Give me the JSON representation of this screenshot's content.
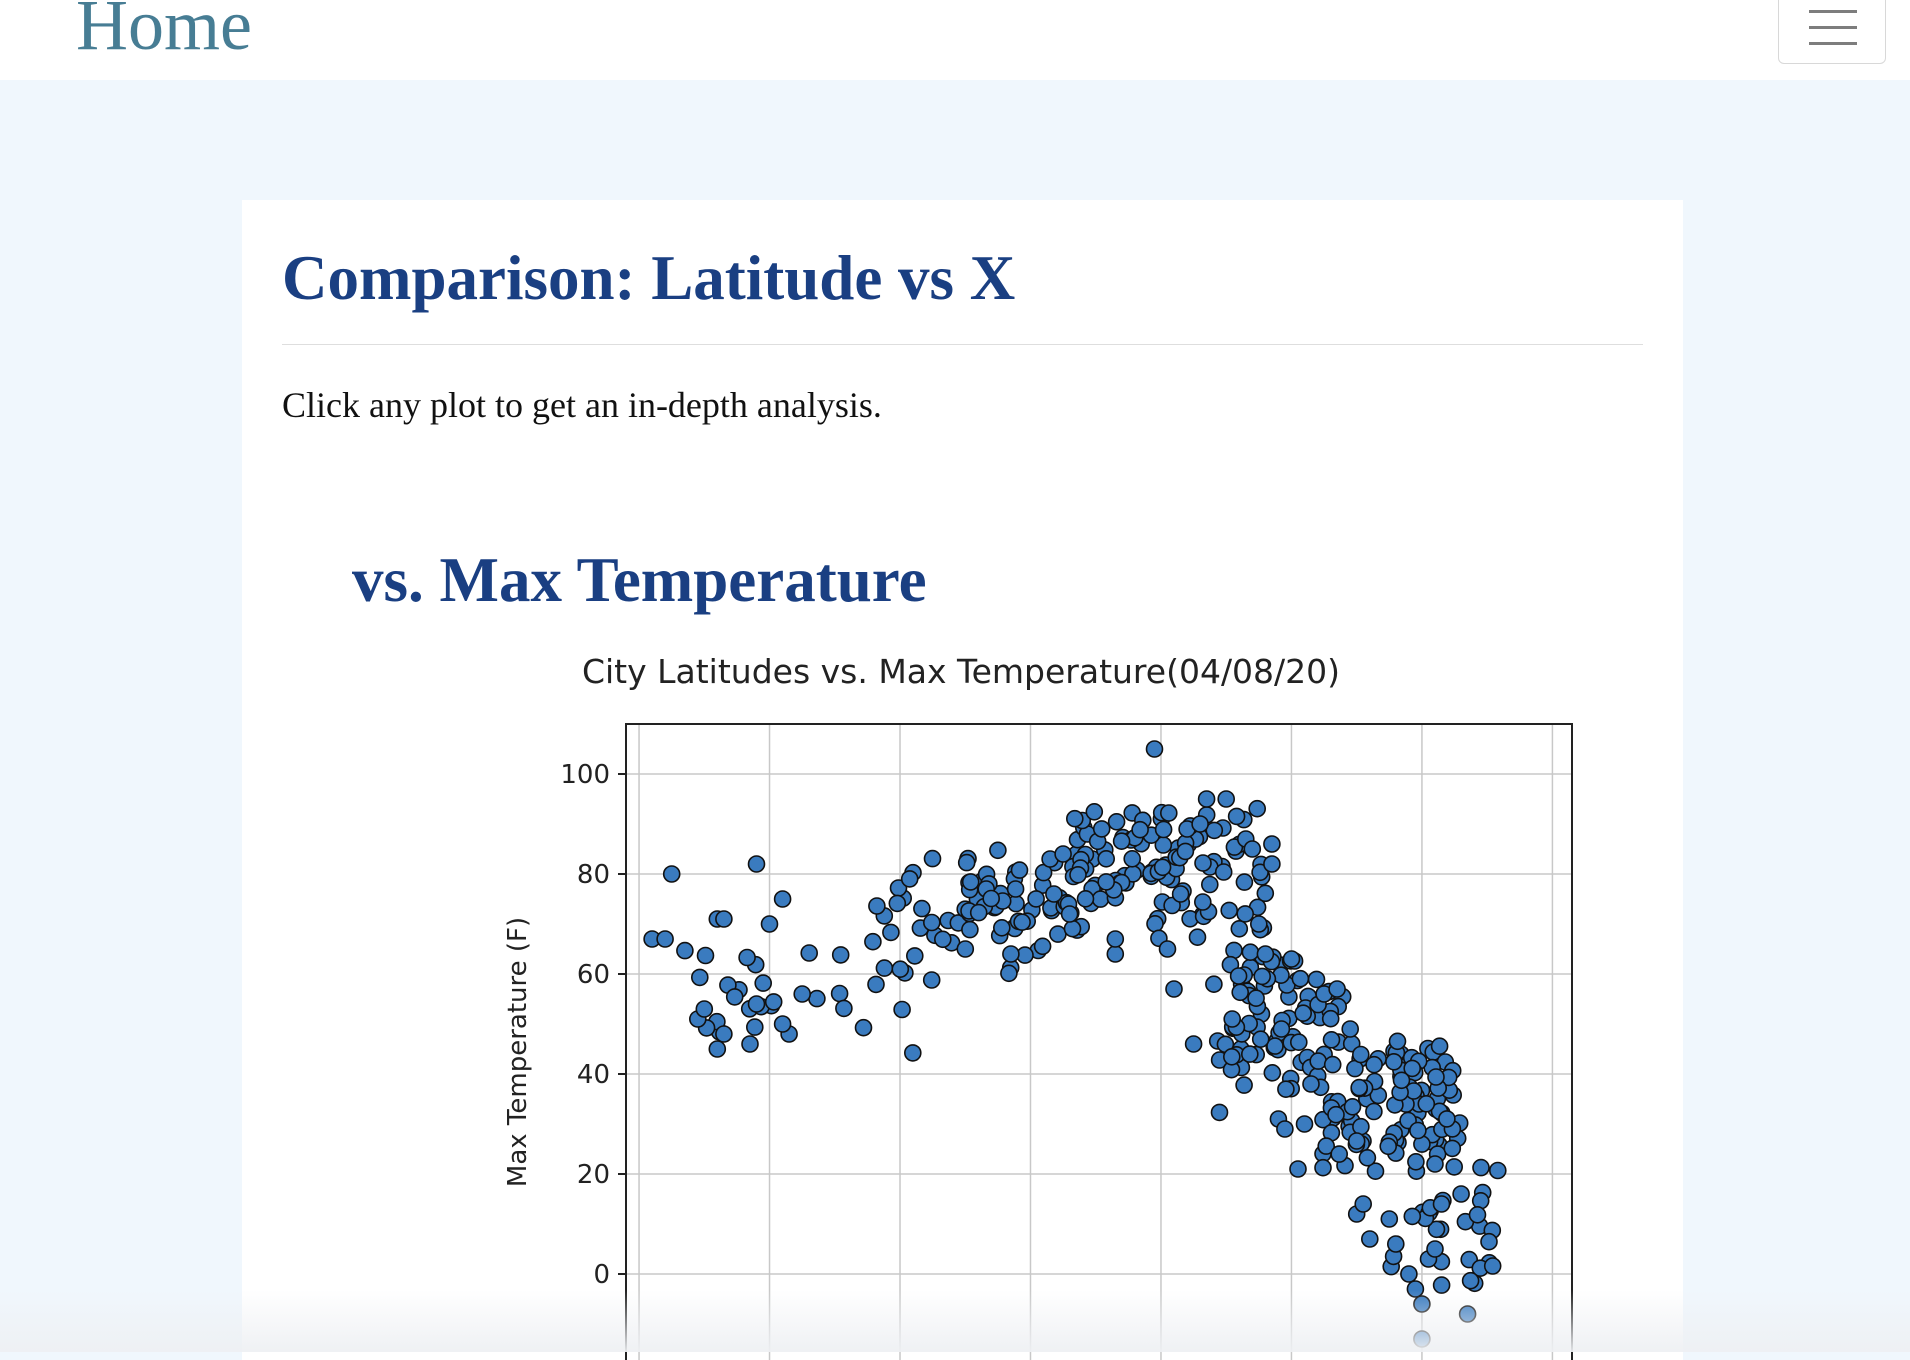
{
  "nav": {
    "brand": "Home",
    "menu_icon": "hamburger-menu-icon"
  },
  "page": {
    "title": "Comparison: Latitude vs X",
    "instruction": "Click any plot to get an in-depth analysis.",
    "plot_heading": "vs. Max Temperature"
  },
  "colors": {
    "navbar_bg": "#ffffff",
    "page_bg": "#f0f7fd",
    "heading": "#1a3f82",
    "brand": "#477d94",
    "marker_fill": "#3a7bbf",
    "marker_edge": "#111111"
  },
  "chart_data": {
    "type": "scatter",
    "title": "City Latitudes vs. Max Temperature(04/08/20)",
    "xlabel": "",
    "ylabel": "Max Temperature (F)",
    "xlim": [
      -62,
      83
    ],
    "ylim": [
      -18,
      110
    ],
    "grid": true,
    "xticks": [
      -60,
      -40,
      -20,
      0,
      20,
      40,
      60,
      80
    ],
    "yticks": [
      0,
      20,
      40,
      60,
      80,
      100
    ],
    "ytick_labels": [
      "0",
      "20",
      "40",
      "60",
      "80",
      "100"
    ],
    "clusters": [
      {
        "x": [
          -54,
          -18
        ],
        "y": [
          44,
          72
        ],
        "n": 28
      },
      {
        "x": [
          -24,
          -2
        ],
        "y": [
          55,
          84
        ],
        "n": 30
      },
      {
        "x": [
          -10,
          10
        ],
        "y": [
          62,
          86
        ],
        "n": 55
      },
      {
        "x": [
          6,
          24
        ],
        "y": [
          72,
          94
        ],
        "n": 55
      },
      {
        "x": [
          18,
          36
        ],
        "y": [
          60,
          95
        ],
        "n": 50
      },
      {
        "x": [
          28,
          48
        ],
        "y": [
          30,
          72
        ],
        "n": 80
      },
      {
        "x": [
          44,
          66
        ],
        "y": [
          18,
          50
        ],
        "n": 105
      },
      {
        "x": [
          55,
          72
        ],
        "y": [
          -6,
          25
        ],
        "n": 30
      }
    ],
    "points": [
      [
        -58,
        67
      ],
      [
        -56,
        67
      ],
      [
        -55,
        80
      ],
      [
        -51,
        51
      ],
      [
        -50,
        53
      ],
      [
        -48,
        71
      ],
      [
        -47,
        71
      ],
      [
        -48,
        45
      ],
      [
        -47,
        48
      ],
      [
        -43,
        46
      ],
      [
        -42,
        82
      ],
      [
        -38,
        75
      ],
      [
        -42,
        54
      ],
      [
        -40,
        70
      ],
      [
        -37,
        48
      ],
      [
        -38,
        50
      ],
      [
        -35,
        56
      ],
      [
        -3,
        64
      ],
      [
        -10,
        65
      ],
      [
        3,
        83
      ],
      [
        5,
        84
      ],
      [
        6,
        72
      ],
      [
        13,
        64
      ],
      [
        13,
        67
      ],
      [
        19,
        105
      ],
      [
        21,
        65
      ],
      [
        22,
        57
      ],
      [
        23,
        76
      ],
      [
        24,
        89
      ],
      [
        25,
        46
      ],
      [
        26,
        90
      ],
      [
        27,
        95
      ],
      [
        30,
        95
      ],
      [
        33,
        87
      ],
      [
        34,
        85
      ],
      [
        35,
        70
      ],
      [
        36,
        64
      ],
      [
        37,
        86
      ],
      [
        37,
        82
      ],
      [
        38,
        31
      ],
      [
        39,
        29
      ],
      [
        40,
        63
      ],
      [
        41,
        21
      ],
      [
        42,
        30
      ],
      [
        43,
        38
      ],
      [
        45,
        56
      ],
      [
        47,
        57
      ],
      [
        49,
        49
      ],
      [
        50,
        12
      ],
      [
        51,
        14
      ],
      [
        52,
        7
      ],
      [
        55,
        11
      ],
      [
        56,
        6
      ],
      [
        58,
        0
      ],
      [
        59,
        -3
      ],
      [
        60,
        -6
      ],
      [
        60,
        -13
      ],
      [
        61,
        3
      ],
      [
        62,
        5
      ],
      [
        62,
        22
      ],
      [
        63,
        14
      ],
      [
        66,
        16
      ],
      [
        67,
        -8
      ]
    ],
    "marker": {
      "shape": "circle"
    }
  }
}
